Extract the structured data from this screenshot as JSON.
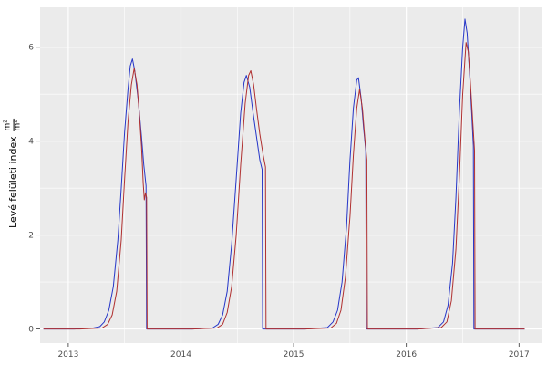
{
  "figure": {
    "background": "#FFFFFF",
    "panel_background": "#EBEBEB",
    "grid_major_color": "#FFFFFF",
    "grid_minor_color": "#FFFFFF",
    "tick_color": "#333333",
    "tick_label_color": "#4D4D4D",
    "axis_title_color": "#000000"
  },
  "chart_data": {
    "type": "line",
    "title": "",
    "xlabel": "",
    "ylabel": "Levélfelületi index m²/m²",
    "ylabel_text": "Levélfelületi index",
    "ylabel_fraction_numerator": "m²",
    "ylabel_fraction_denominator": "m²",
    "legend": "none",
    "grid": true,
    "xlim": [
      2012.75,
      2017.2
    ],
    "ylim": [
      -0.3,
      6.85
    ],
    "x_ticks": [
      2013,
      2014,
      2015,
      2016,
      2017
    ],
    "y_ticks": [
      0,
      2,
      4,
      6
    ],
    "x_minor_ticks": [
      2013.5,
      2014.5,
      2015.5,
      2016.5
    ],
    "y_minor_ticks": [
      1,
      3,
      5
    ],
    "series": [
      {
        "name": "series-blue",
        "color": "#2636C8",
        "points": [
          [
            2012.78,
            0
          ],
          [
            2013.05,
            0
          ],
          [
            2013.22,
            0.02
          ],
          [
            2013.28,
            0.05
          ],
          [
            2013.32,
            0.15
          ],
          [
            2013.36,
            0.4
          ],
          [
            2013.4,
            0.9
          ],
          [
            2013.44,
            1.9
          ],
          [
            2013.47,
            3.0
          ],
          [
            2013.5,
            4.2
          ],
          [
            2013.53,
            5.1
          ],
          [
            2013.55,
            5.6
          ],
          [
            2013.57,
            5.75
          ],
          [
            2013.59,
            5.5
          ],
          [
            2013.62,
            4.9
          ],
          [
            2013.65,
            4.1
          ],
          [
            2013.67,
            3.5
          ],
          [
            2013.69,
            3.05
          ],
          [
            2013.695,
            0
          ],
          [
            2013.8,
            0
          ],
          [
            2014.1,
            0
          ],
          [
            2014.28,
            0.02
          ],
          [
            2014.33,
            0.1
          ],
          [
            2014.37,
            0.3
          ],
          [
            2014.41,
            0.8
          ],
          [
            2014.45,
            1.8
          ],
          [
            2014.49,
            3.2
          ],
          [
            2014.53,
            4.6
          ],
          [
            2014.56,
            5.25
          ],
          [
            2014.58,
            5.4
          ],
          [
            2014.61,
            5.15
          ],
          [
            2014.64,
            4.6
          ],
          [
            2014.67,
            4.1
          ],
          [
            2014.7,
            3.6
          ],
          [
            2014.72,
            3.4
          ],
          [
            2014.725,
            0
          ],
          [
            2014.85,
            0
          ],
          [
            2015.1,
            0
          ],
          [
            2015.3,
            0.03
          ],
          [
            2015.35,
            0.15
          ],
          [
            2015.39,
            0.4
          ],
          [
            2015.43,
            1.0
          ],
          [
            2015.47,
            2.2
          ],
          [
            2015.5,
            3.6
          ],
          [
            2015.53,
            4.7
          ],
          [
            2015.56,
            5.3
          ],
          [
            2015.575,
            5.35
          ],
          [
            2015.6,
            4.9
          ],
          [
            2015.62,
            4.3
          ],
          [
            2015.64,
            3.8
          ],
          [
            2015.645,
            0
          ],
          [
            2015.75,
            0
          ],
          [
            2016.1,
            0
          ],
          [
            2016.28,
            0.03
          ],
          [
            2016.33,
            0.15
          ],
          [
            2016.37,
            0.5
          ],
          [
            2016.41,
            1.4
          ],
          [
            2016.44,
            2.8
          ],
          [
            2016.47,
            4.6
          ],
          [
            2016.5,
            6.0
          ],
          [
            2016.52,
            6.6
          ],
          [
            2016.54,
            6.3
          ],
          [
            2016.56,
            5.5
          ],
          [
            2016.58,
            4.6
          ],
          [
            2016.595,
            3.9
          ],
          [
            2016.6,
            0
          ],
          [
            2016.75,
            0
          ],
          [
            2017.05,
            0
          ]
        ]
      },
      {
        "name": "series-red",
        "color": "#B03030",
        "points": [
          [
            2012.78,
            0
          ],
          [
            2013.1,
            0
          ],
          [
            2013.3,
            0.02
          ],
          [
            2013.35,
            0.1
          ],
          [
            2013.39,
            0.3
          ],
          [
            2013.43,
            0.8
          ],
          [
            2013.47,
            1.9
          ],
          [
            2013.5,
            3.2
          ],
          [
            2013.53,
            4.4
          ],
          [
            2013.56,
            5.2
          ],
          [
            2013.585,
            5.55
          ],
          [
            2013.61,
            5.2
          ],
          [
            2013.63,
            4.6
          ],
          [
            2013.65,
            3.9
          ],
          [
            2013.665,
            3.1
          ],
          [
            2013.675,
            2.75
          ],
          [
            2013.685,
            2.9
          ],
          [
            2013.695,
            2.8
          ],
          [
            2013.7,
            0
          ],
          [
            2013.85,
            0
          ],
          [
            2014.1,
            0
          ],
          [
            2014.32,
            0.02
          ],
          [
            2014.37,
            0.1
          ],
          [
            2014.41,
            0.35
          ],
          [
            2014.45,
            0.9
          ],
          [
            2014.49,
            2.0
          ],
          [
            2014.53,
            3.5
          ],
          [
            2014.57,
            4.8
          ],
          [
            2014.6,
            5.4
          ],
          [
            2014.62,
            5.5
          ],
          [
            2014.645,
            5.2
          ],
          [
            2014.67,
            4.7
          ],
          [
            2014.7,
            4.15
          ],
          [
            2014.73,
            3.7
          ],
          [
            2014.75,
            3.45
          ],
          [
            2014.755,
            0
          ],
          [
            2014.9,
            0
          ],
          [
            2015.1,
            0
          ],
          [
            2015.33,
            0.02
          ],
          [
            2015.38,
            0.12
          ],
          [
            2015.42,
            0.4
          ],
          [
            2015.46,
            1.1
          ],
          [
            2015.5,
            2.4
          ],
          [
            2015.53,
            3.7
          ],
          [
            2015.56,
            4.7
          ],
          [
            2015.585,
            5.1
          ],
          [
            2015.61,
            4.7
          ],
          [
            2015.63,
            4.1
          ],
          [
            2015.65,
            3.6
          ],
          [
            2015.655,
            0
          ],
          [
            2015.8,
            0
          ],
          [
            2016.1,
            0
          ],
          [
            2016.31,
            0.03
          ],
          [
            2016.36,
            0.15
          ],
          [
            2016.4,
            0.6
          ],
          [
            2016.44,
            1.7
          ],
          [
            2016.47,
            3.2
          ],
          [
            2016.5,
            5.0
          ],
          [
            2016.53,
            6.1
          ],
          [
            2016.55,
            5.9
          ],
          [
            2016.57,
            5.2
          ],
          [
            2016.59,
            4.4
          ],
          [
            2016.605,
            3.8
          ],
          [
            2016.61,
            0
          ],
          [
            2016.75,
            0
          ],
          [
            2017.05,
            0
          ]
        ]
      }
    ]
  }
}
